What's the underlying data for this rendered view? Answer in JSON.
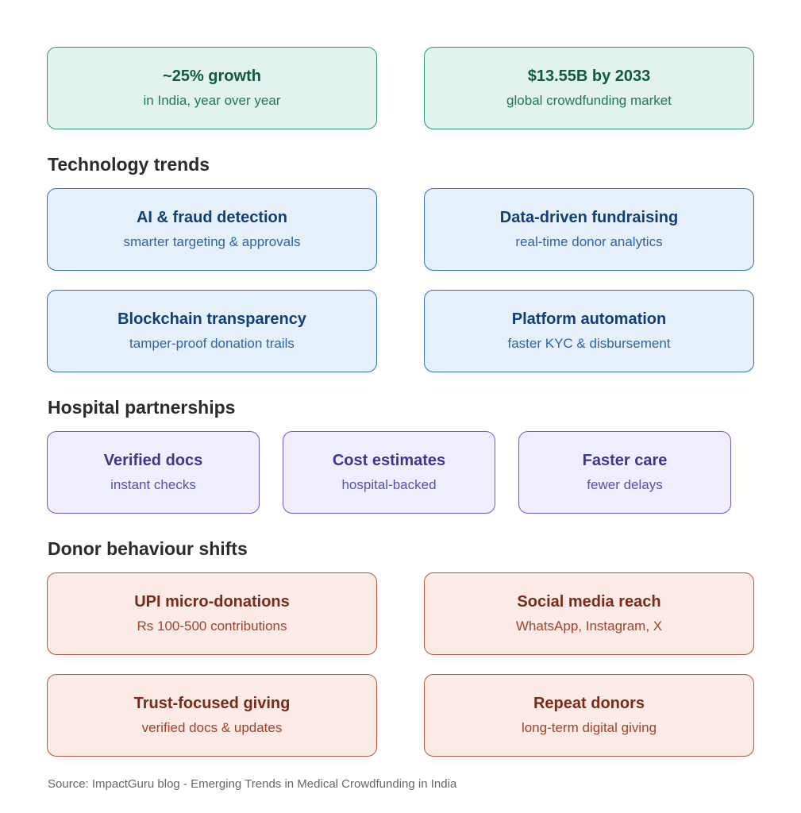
{
  "stats": [
    {
      "title": "~25% growth",
      "subtitle": "in India, year over year"
    },
    {
      "title": "$13.55B by 2033",
      "subtitle": "global crowdfunding market"
    }
  ],
  "sections": {
    "technology": {
      "heading": "Technology trends",
      "cards": [
        {
          "title": "AI & fraud detection",
          "subtitle": "smarter targeting & approvals"
        },
        {
          "title": "Data-driven fundraising",
          "subtitle": "real-time donor analytics"
        },
        {
          "title": "Blockchain transparency",
          "subtitle": "tamper-proof donation trails"
        },
        {
          "title": "Platform automation",
          "subtitle": "faster KYC & disbursement"
        }
      ]
    },
    "hospital": {
      "heading": "Hospital partnerships",
      "cards": [
        {
          "title": "Verified docs",
          "subtitle": "instant checks"
        },
        {
          "title": "Cost estimates",
          "subtitle": "hospital-backed"
        },
        {
          "title": "Faster care",
          "subtitle": "fewer delays"
        }
      ]
    },
    "donor": {
      "heading": "Donor behaviour shifts",
      "cards": [
        {
          "title": "UPI micro-donations",
          "subtitle": "Rs 100-500 contributions"
        },
        {
          "title": "Social media reach",
          "subtitle": "WhatsApp, Instagram, X"
        },
        {
          "title": "Trust-focused giving",
          "subtitle": "verified docs & updates"
        },
        {
          "title": "Repeat donors",
          "subtitle": "long-term digital giving"
        }
      ]
    }
  },
  "source": "Source: ImpactGuru blog - Emerging Trends in Medical Crowdfunding in India",
  "colors": {
    "stat": "#2e9a6b",
    "technology": "#2f6fc0",
    "hospital": "#6a5ec9",
    "donor": "#b8553c"
  }
}
